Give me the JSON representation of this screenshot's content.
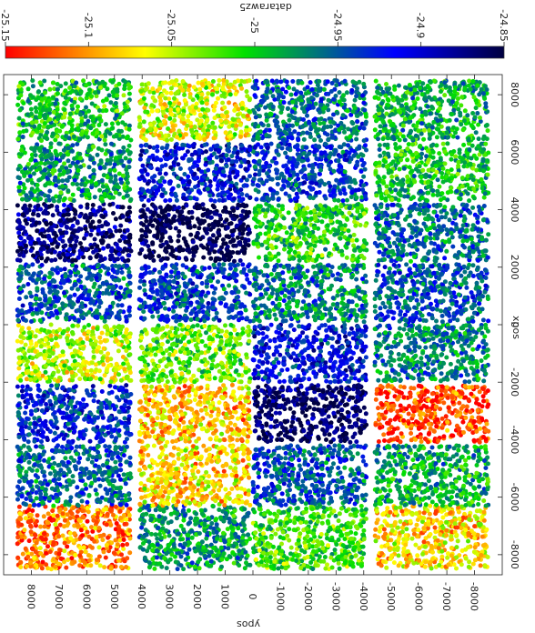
{
  "chart_data": {
    "type": "scatter",
    "orientation": "rotated-180",
    "title": "datarawz5",
    "xlabel": "xpos",
    "ylabel": "ypos",
    "colorbar": {
      "ticks": [
        -25.15,
        -25.1,
        -25.05,
        -25,
        -24.95,
        -24.9,
        -24.85
      ],
      "tick_labels": [
        "-25.15",
        "-25.1",
        "-25.05",
        "-25",
        "-24.95",
        "-24.9",
        "-24.85"
      ],
      "range": [
        -25.15,
        -24.85
      ],
      "colormap": [
        "#ff0000",
        "#ffff00",
        "#00e000",
        "#0000ff",
        "#000040"
      ]
    },
    "xlim": [
      -8700,
      8700
    ],
    "ylim": [
      -9000,
      9000
    ],
    "x_ticks": [
      -8000,
      -6000,
      -4000,
      -2000,
      0,
      2000,
      4000,
      6000,
      8000
    ],
    "x_tick_labels": [
      "-8000",
      "-6000",
      "-4000",
      "-2000",
      "0",
      "2000",
      "4000",
      "6000",
      "8000"
    ],
    "y_ticks": [
      -8000,
      -7000,
      -6000,
      -5000,
      -4000,
      -3000,
      -2000,
      -1000,
      0,
      1000,
      2000,
      3000,
      4000,
      5000,
      6000,
      7000,
      8000
    ],
    "y_tick_labels": [
      "-8000",
      "-7000",
      "-6000",
      "-5000",
      "-4000",
      "-3000",
      "-2000",
      "-1000",
      "0",
      "1000",
      "2000",
      "3000",
      "4000",
      "5000",
      "6000",
      "7000",
      "8000"
    ],
    "grid": false,
    "x_bands": [
      [
        -8500,
        -6300
      ],
      [
        -6300,
        -4200
      ],
      [
        -4100,
        -2100
      ],
      [
        -2000,
        0
      ],
      [
        100,
        2100
      ],
      [
        2200,
        4200
      ],
      [
        4300,
        6300
      ],
      [
        6400,
        8500
      ]
    ],
    "y_columns": [
      [
        -8500,
        -4400
      ],
      [
        -4100,
        0
      ],
      [
        100,
        4100
      ],
      [
        4400,
        8500
      ]
    ],
    "tile_values": [
      [
        -25.08,
        -25.02,
        -24.98,
        -25.11
      ],
      [
        -24.99,
        -24.95,
        -25.08,
        -24.96
      ],
      [
        -25.13,
        -24.86,
        -25.09,
        -24.93
      ],
      [
        -24.97,
        -24.92,
        -25.03,
        -25.05
      ],
      [
        -24.95,
        -24.97,
        -24.94,
        -24.95
      ],
      [
        -24.96,
        -25.01,
        -24.85,
        -24.87
      ],
      [
        -25.0,
        -24.94,
        -24.92,
        -24.98
      ],
      [
        -24.99,
        -24.96,
        -25.06,
        -25.0
      ]
    ]
  }
}
